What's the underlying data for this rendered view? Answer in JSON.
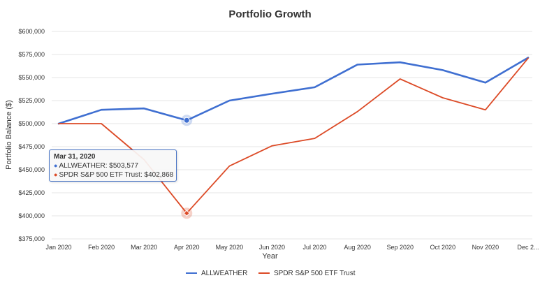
{
  "chart_data": {
    "type": "line",
    "title": "Portfolio Growth",
    "xlabel": "Year",
    "ylabel": "Portfolio Balance ($)",
    "categories": [
      "Jan 2020",
      "Feb 2020",
      "Mar 2020",
      "Apr 2020",
      "May 2020",
      "Jun 2020",
      "Jul 2020",
      "Aug 2020",
      "Sep 2020",
      "Oct 2020",
      "Nov 2020",
      "Dec 2..."
    ],
    "ylim": [
      375000,
      600000
    ],
    "yticks": [
      375000,
      400000,
      425000,
      450000,
      475000,
      500000,
      525000,
      550000,
      575000,
      600000
    ],
    "ytick_labels": [
      "$375,000",
      "$400,000",
      "$425,000",
      "$450,000",
      "$475,000",
      "$500,000",
      "$525,000",
      "$550,000",
      "$575,000",
      "$600,000"
    ],
    "grid": true,
    "legend_position": "bottom",
    "series": [
      {
        "name": "ALLWEATHER",
        "color": "#3f6fd1",
        "values": [
          500000,
          515000,
          516500,
          503577,
          525000,
          532500,
          539500,
          564000,
          566500,
          558000,
          544500,
          571500
        ]
      },
      {
        "name": "SPDR S&P 500 ETF Trust",
        "color": "#dc4a26",
        "values": [
          500000,
          500000,
          461000,
          402868,
          454000,
          476000,
          484000,
          513000,
          548500,
          528000,
          515000,
          571000
        ]
      }
    ],
    "highlighted_index": 3
  },
  "tooltip": {
    "date": "Mar 31, 2020",
    "rows": [
      {
        "label": "ALLWEATHER: $503,577",
        "color": "#3f6fd1"
      },
      {
        "label": "SPDR S&P 500 ETF Trust: $402,868",
        "color": "#dc4a26"
      }
    ]
  }
}
